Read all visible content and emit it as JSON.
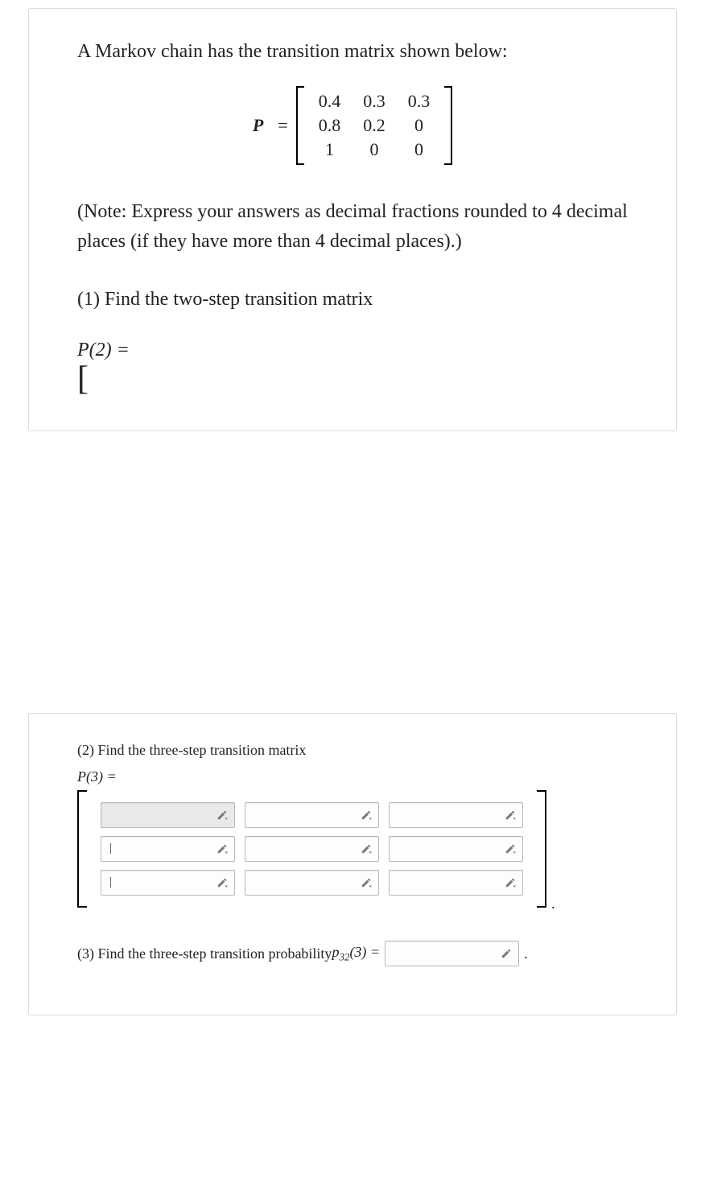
{
  "intro_text": "A Markov chain has the transition matrix shown below:",
  "matrix_label": "P",
  "equals": "=",
  "matrix_rows": [
    [
      "0.4",
      "0.3",
      "0.3"
    ],
    [
      "0.8",
      "0.2",
      "0"
    ],
    [
      "1",
      "0",
      "0"
    ]
  ],
  "note_text": "(Note: Express your answers as decimal fractions rounded to 4 decimal places (if they have more than 4 decimal places).)",
  "q1_text": "(1) Find the two-step transition matrix",
  "p2_label": "P(2) =",
  "open_bracket": "[",
  "q2_text": "(2) Find the three-step transition matrix",
  "p3_label": "P(3) =",
  "matrix_input": {
    "rows": 3,
    "cols": 3,
    "selected": [
      0,
      0
    ],
    "cursor_rows": [
      1,
      2
    ],
    "cursor_char": "|"
  },
  "period": ".",
  "q3_prefix": "(3) Find the three-step transition probability ",
  "q3_symbol_main": "p",
  "q3_symbol_sub": "32",
  "q3_symbol_arg": "(3) =",
  "colors": {
    "text": "#222222",
    "border": "#dcdcdc",
    "input_border": "#b8b8b8",
    "input_bg": "#fdfdfd",
    "selected_bg": "#e9e9e9",
    "pencil": "#7a7a7a"
  }
}
